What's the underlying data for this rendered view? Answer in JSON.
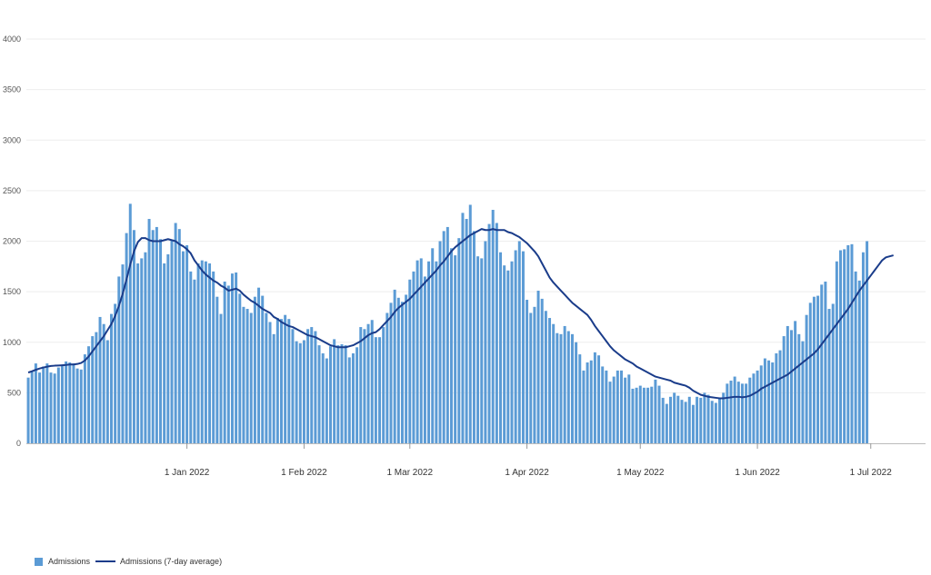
{
  "chart_data": {
    "type": "bar",
    "x_start": "2021-11-20",
    "x_end": "2022-07-15",
    "ylim": [
      0,
      4000
    ],
    "y_ticks": [
      "0",
      "500",
      "1000",
      "1500",
      "2000",
      "2500",
      "3000",
      "3500",
      "4000"
    ],
    "x_ticks": [
      {
        "date": "2022-01-01",
        "label": "1 Jan 2022"
      },
      {
        "date": "2022-02-01",
        "label": "1 Feb 2022"
      },
      {
        "date": "2022-03-01",
        "label": "1 Mar 2022"
      },
      {
        "date": "2022-04-01",
        "label": "1 Apr 2022"
      },
      {
        "date": "2022-05-01",
        "label": "1 May 2022"
      },
      {
        "date": "2022-06-01",
        "label": "1 Jun 2022"
      },
      {
        "date": "2022-07-01",
        "label": "1 Jul 2022"
      }
    ],
    "grid": true,
    "legend_position": "bottom-left",
    "series": [
      {
        "name": "Admissions",
        "kind": "bar",
        "color": "#5b9bd5",
        "values": [
          650,
          710,
          790,
          700,
          760,
          790,
          700,
          690,
          750,
          780,
          810,
          800,
          790,
          740,
          730,
          880,
          960,
          1060,
          1100,
          1250,
          1180,
          1020,
          1280,
          1380,
          1650,
          1770,
          2080,
          2370,
          2110,
          1780,
          1830,
          1890,
          2220,
          2110,
          2140,
          2020,
          1780,
          1870,
          2010,
          2180,
          2120,
          1900,
          1960,
          1700,
          1620,
          1780,
          1810,
          1800,
          1780,
          1700,
          1450,
          1280,
          1600,
          1560,
          1680,
          1690,
          1480,
          1350,
          1330,
          1290,
          1450,
          1540,
          1460,
          1290,
          1200,
          1080,
          1240,
          1230,
          1270,
          1230,
          1130,
          1010,
          990,
          1020,
          1130,
          1150,
          1110,
          970,
          890,
          840,
          960,
          1030,
          970,
          980,
          970,
          850,
          890,
          950,
          1150,
          1130,
          1180,
          1220,
          1050,
          1050,
          1150,
          1290,
          1390,
          1520,
          1440,
          1400,
          1470,
          1620,
          1700,
          1810,
          1830,
          1650,
          1800,
          1930,
          1800,
          2000,
          2100,
          2140,
          1930,
          1860,
          2030,
          2280,
          2220,
          2360,
          2100,
          1850,
          1830,
          2000,
          2170,
          2310,
          2180,
          1890,
          1760,
          1710,
          1800,
          1910,
          2000,
          1900,
          1420,
          1290,
          1350,
          1510,
          1430,
          1310,
          1240,
          1180,
          1090,
          1080,
          1160,
          1110,
          1080,
          1000,
          880,
          720,
          800,
          820,
          900,
          870,
          760,
          720,
          610,
          660,
          720,
          720,
          650,
          680,
          540,
          550,
          570,
          550,
          550,
          560,
          630,
          570,
          450,
          390,
          460,
          500,
          470,
          430,
          410,
          460,
          380,
          460,
          450,
          500,
          480,
          420,
          400,
          450,
          500,
          590,
          620,
          660,
          610,
          590,
          590,
          650,
          690,
          720,
          770,
          840,
          820,
          800,
          890,
          920,
          1060,
          1160,
          1120,
          1210,
          1080,
          1010,
          1270,
          1390,
          1450,
          1460,
          1570,
          1600,
          1330,
          1380,
          1800,
          1910,
          1920,
          1960,
          1970,
          1700,
          1610,
          1890,
          2000
        ]
      },
      {
        "name": "Admissions (7-day average)",
        "kind": "line",
        "color": "#1a3c8a",
        "values": [
          700,
          713,
          727,
          740,
          750,
          758,
          765,
          768,
          770,
          772,
          775,
          780,
          780,
          785,
          795,
          820,
          860,
          910,
          960,
          1010,
          1060,
          1120,
          1180,
          1260,
          1360,
          1480,
          1620,
          1770,
          1900,
          1990,
          2030,
          2030,
          2010,
          2000,
          2000,
          2000,
          2010,
          2020,
          2010,
          2000,
          1970,
          1950,
          1920,
          1880,
          1810,
          1760,
          1710,
          1670,
          1640,
          1610,
          1590,
          1560,
          1540,
          1510,
          1520,
          1530,
          1510,
          1470,
          1440,
          1410,
          1390,
          1360,
          1330,
          1310,
          1290,
          1250,
          1230,
          1200,
          1180,
          1160,
          1150,
          1130,
          1110,
          1090,
          1070,
          1060,
          1050,
          1030,
          1010,
          990,
          970,
          960,
          950,
          950,
          950,
          960,
          970,
          990,
          1010,
          1040,
          1070,
          1090,
          1100,
          1130,
          1170,
          1210,
          1250,
          1300,
          1340,
          1370,
          1400,
          1430,
          1470,
          1510,
          1550,
          1590,
          1630,
          1670,
          1710,
          1760,
          1800,
          1850,
          1900,
          1940,
          1970,
          2000,
          2030,
          2060,
          2080,
          2100,
          2120,
          2110,
          2110,
          2120,
          2110,
          2110,
          2110,
          2090,
          2080,
          2060,
          2040,
          2010,
          1980,
          1940,
          1900,
          1850,
          1780,
          1710,
          1640,
          1590,
          1550,
          1510,
          1470,
          1430,
          1390,
          1360,
          1330,
          1300,
          1270,
          1220,
          1160,
          1110,
          1060,
          1010,
          960,
          920,
          890,
          860,
          830,
          810,
          790,
          760,
          740,
          720,
          700,
          680,
          660,
          650,
          640,
          630,
          620,
          600,
          590,
          580,
          570,
          550,
          520,
          500,
          480,
          470,
          460,
          455,
          450,
          445,
          445,
          450,
          455,
          460,
          460,
          455,
          460,
          470,
          490,
          510,
          540,
          560,
          580,
          600,
          620,
          640,
          660,
          680,
          710,
          740,
          770,
          800,
          830,
          860,
          890,
          930,
          980,
          1030,
          1080,
          1130,
          1180,
          1230,
          1280,
          1330,
          1390,
          1450,
          1510,
          1560,
          1610,
          1660,
          1710,
          1760,
          1810,
          1840,
          1850,
          1860
        ]
      }
    ]
  }
}
